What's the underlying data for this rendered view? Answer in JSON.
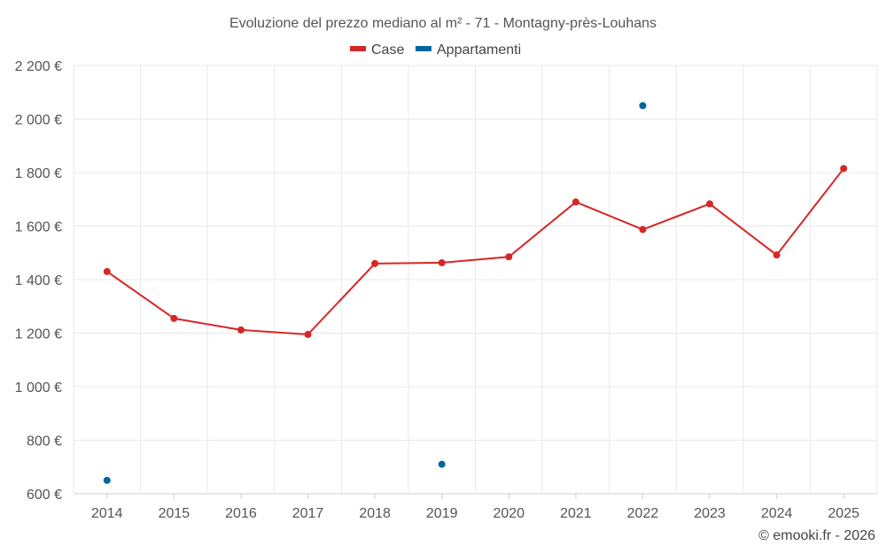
{
  "chart_data": {
    "type": "line",
    "title": "Evoluzione del prezzo mediano al m² - 71 - Montagny-près-Louhans",
    "categories": [
      "2014",
      "2015",
      "2016",
      "2017",
      "2018",
      "2019",
      "2020",
      "2021",
      "2022",
      "2023",
      "2024",
      "2025"
    ],
    "series": [
      {
        "name": "Case",
        "color": "#d62728",
        "values": [
          1430,
          1255,
          1212,
          1195,
          1460,
          1463,
          1485,
          1690,
          1587,
          1683,
          1492,
          1815
        ]
      },
      {
        "name": "Appartamenti",
        "color": "#00669e",
        "values": [
          650,
          null,
          null,
          null,
          null,
          710,
          null,
          null,
          2050,
          null,
          null,
          null
        ]
      }
    ],
    "ylim": [
      600,
      2200
    ],
    "yticks": [
      600,
      800,
      1000,
      1200,
      1400,
      1600,
      1800,
      2000,
      2200
    ],
    "ytick_labels": [
      "600 €",
      "800 €",
      "1 000 €",
      "1 200 €",
      "1 400 €",
      "1 600 €",
      "1 800 €",
      "2 000 €",
      "2 200 €"
    ],
    "grid": true,
    "legend_position": "top-center"
  },
  "credit": "© emooki.fr - 2026"
}
